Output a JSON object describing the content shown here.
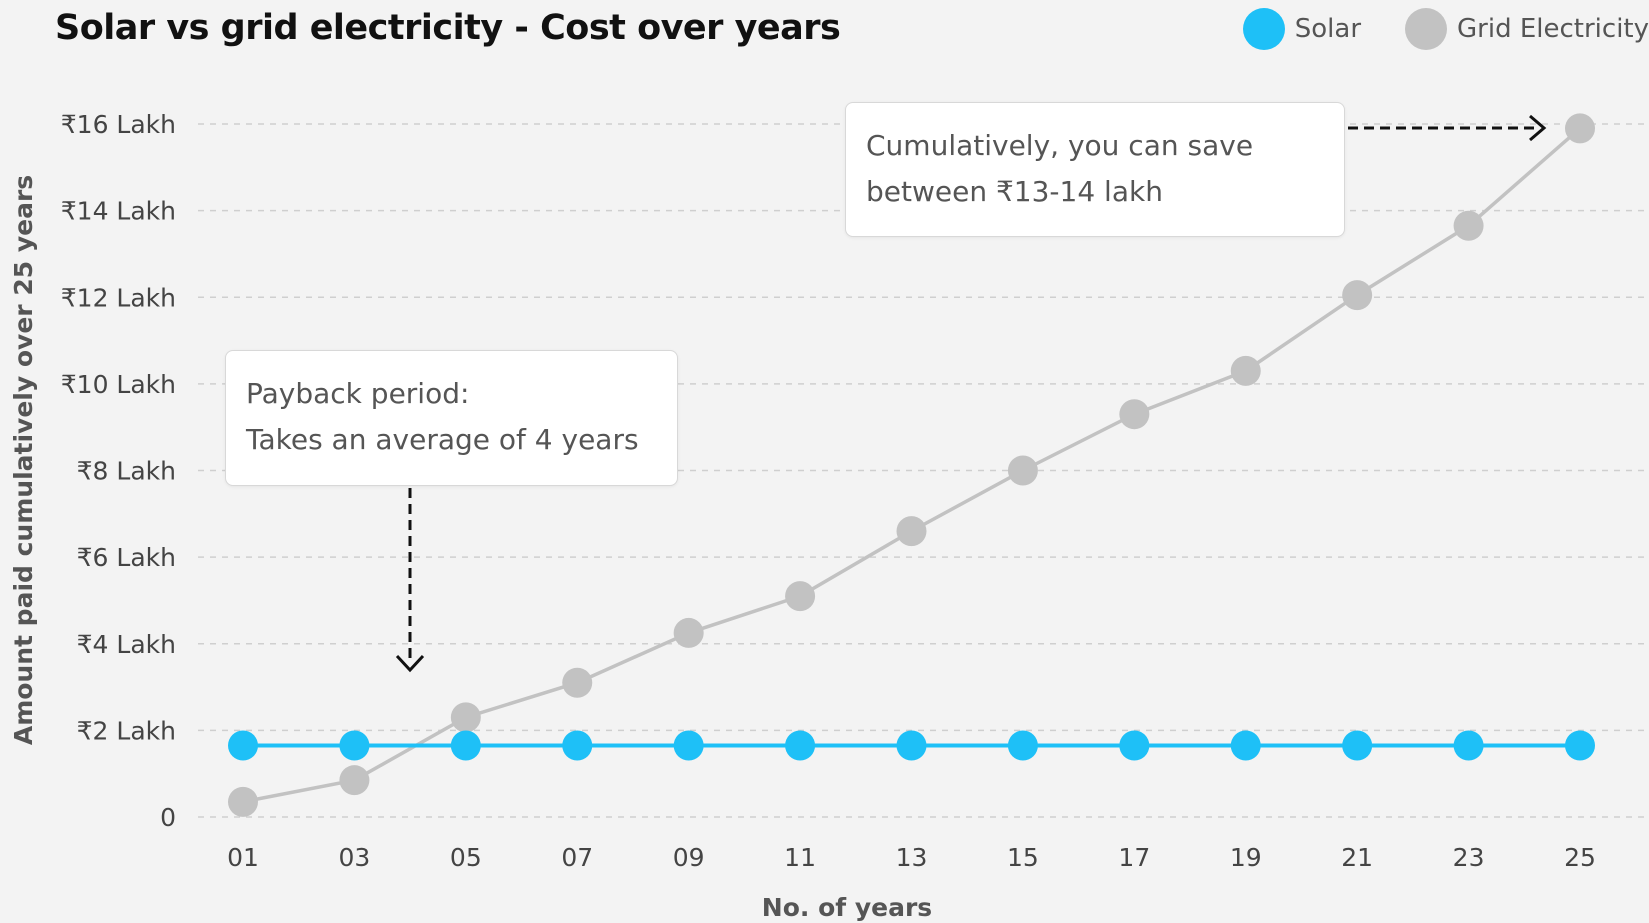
{
  "chart_data": {
    "type": "line",
    "title": "Solar vs grid electricity -  Cost over years",
    "xlabel": "No. of years",
    "ylabel": "Amount paid cumulatively over 25 years",
    "x": [
      "01",
      "03",
      "05",
      "07",
      "09",
      "11",
      "13",
      "15",
      "17",
      "19",
      "21",
      "23",
      "25"
    ],
    "yticks": [
      {
        "value": 0,
        "label": "0"
      },
      {
        "value": 2,
        "label": "₹2 Lakh"
      },
      {
        "value": 4,
        "label": "₹4 Lakh"
      },
      {
        "value": 6,
        "label": "₹6 Lakh"
      },
      {
        "value": 8,
        "label": "₹8 Lakh"
      },
      {
        "value": 10,
        "label": "₹10 Lakh"
      },
      {
        "value": 12,
        "label": "₹12 Lakh"
      },
      {
        "value": 14,
        "label": "₹14 Lakh"
      },
      {
        "value": 16,
        "label": "₹16 Lakh"
      }
    ],
    "ylim": [
      0,
      16
    ],
    "grid": true,
    "legend_position": "top-right",
    "series": [
      {
        "name": "Solar",
        "color": "#1ec0f7",
        "values": [
          1.65,
          1.65,
          1.65,
          1.65,
          1.65,
          1.65,
          1.65,
          1.65,
          1.65,
          1.65,
          1.65,
          1.65,
          1.65
        ]
      },
      {
        "name": "Grid Electricity",
        "color": "#c2c2c2",
        "values": [
          0.35,
          0.85,
          2.3,
          3.1,
          4.25,
          5.1,
          6.6,
          8.0,
          9.3,
          10.3,
          12.05,
          13.65,
          15.9
        ]
      }
    ],
    "annotations": [
      {
        "id": "savings",
        "lines": [
          "Cumulatively, you can save",
          "between ₹13-14 lakh"
        ]
      },
      {
        "id": "payback",
        "lines": [
          "Payback period:",
          "Takes an average of 4 years"
        ]
      }
    ]
  }
}
